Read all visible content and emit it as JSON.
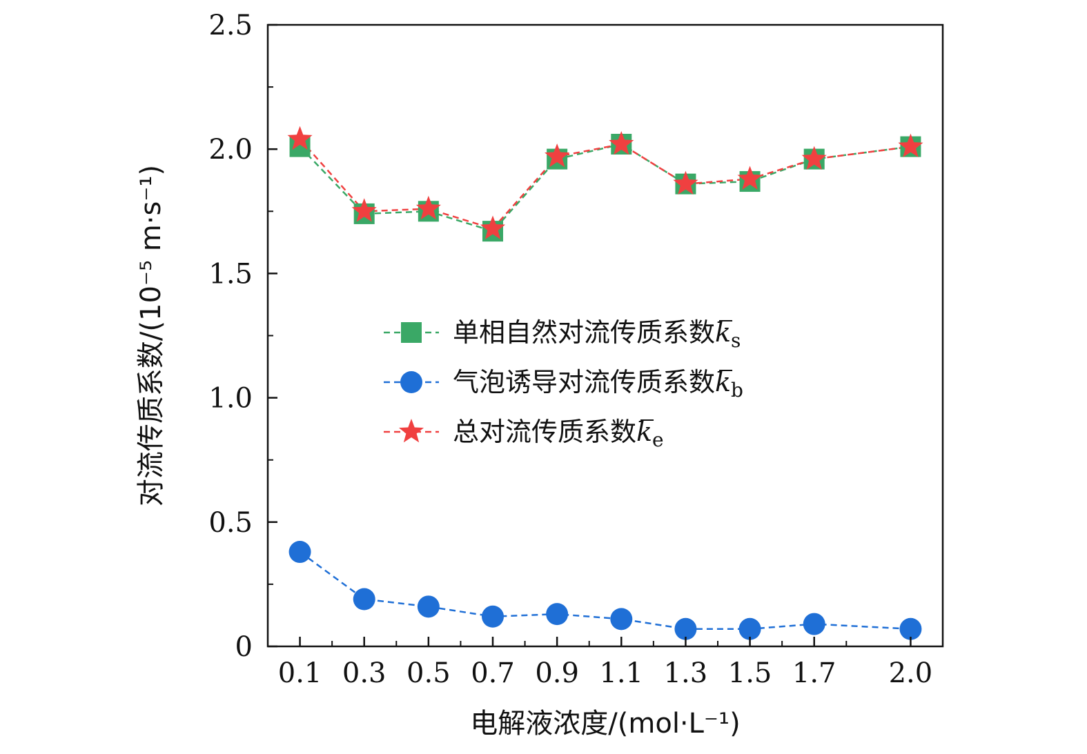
{
  "chart_data": {
    "type": "line",
    "xlabel": "电解液浓度/(mol·L⁻¹)",
    "ylabel": "对流传质系数/(10⁻⁵ m·s⁻¹)",
    "ylim": [
      0,
      2.5
    ],
    "y_ticks": [
      "0",
      "0.5",
      "1.0",
      "1.5",
      "2.0",
      "2.5"
    ],
    "y_tick_values": [
      0,
      0.5,
      1.0,
      1.5,
      2.0,
      2.5
    ],
    "categories": [
      "0.1",
      "0.3",
      "0.5",
      "0.7",
      "0.9",
      "1.1",
      "1.3",
      "1.5",
      "1.7",
      "2.0"
    ],
    "grid": false,
    "legend_position": "center",
    "series": [
      {
        "name": "单相自然对流传质系数",
        "symbol": "k",
        "subscript": "s",
        "marker": "square",
        "color": "#3aa866",
        "values": [
          2.01,
          1.74,
          1.75,
          1.67,
          1.96,
          2.02,
          1.86,
          1.87,
          1.96,
          2.01
        ]
      },
      {
        "name": "气泡诱导对流传质系数",
        "symbol": "k",
        "subscript": "b",
        "marker": "circle",
        "color": "#1f6fd6",
        "values": [
          0.38,
          0.19,
          0.16,
          0.12,
          0.13,
          0.11,
          0.07,
          0.07,
          0.09,
          0.07
        ]
      },
      {
        "name": "总对流传质系数",
        "symbol": "k",
        "subscript": "e",
        "marker": "star",
        "color": "#f04040",
        "values": [
          2.04,
          1.75,
          1.76,
          1.68,
          1.97,
          2.02,
          1.86,
          1.88,
          1.96,
          2.01
        ]
      }
    ]
  }
}
